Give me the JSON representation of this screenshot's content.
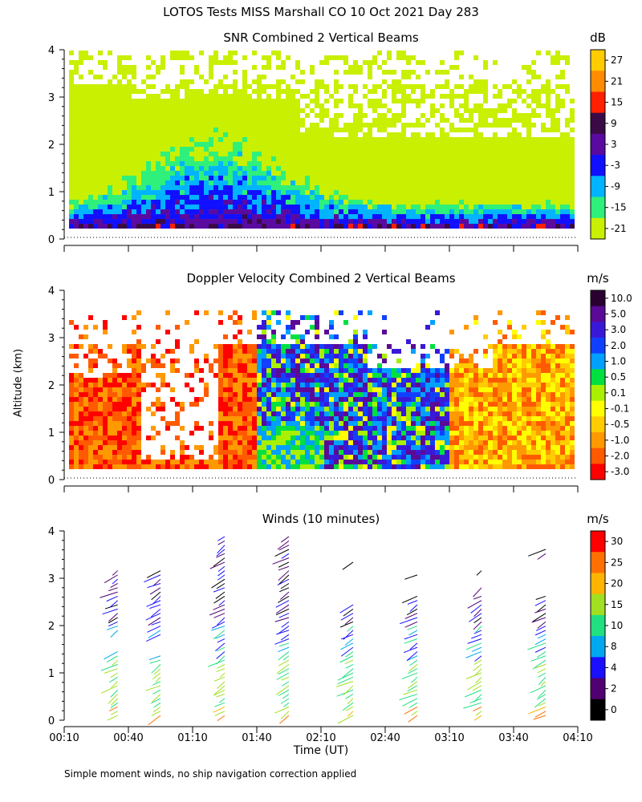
{
  "figure": {
    "title": "LOTOS Tests MISS Marshall CO  10 Oct 2021 Day 283",
    "ylabel": "Altitude (km)",
    "xlabel": "Time (UT)",
    "footnote": "Simple moment winds, no ship navigation correction applied",
    "x_ticks": [
      "00:10",
      "00:40",
      "01:10",
      "01:40",
      "02:10",
      "02:40",
      "03:10",
      "03:40",
      "04:10"
    ],
    "y_ticks": [
      "0",
      "1",
      "2",
      "3",
      "4"
    ]
  },
  "chart_data": [
    {
      "type": "heatmap",
      "title": "SNR Combined 2 Vertical Beams",
      "units": "dB",
      "xlim_minutes": [
        10,
        250
      ],
      "ylim_km": [
        0,
        4
      ],
      "colorbar": {
        "labels": [
          "27",
          "21",
          "15",
          "9",
          "3",
          "-3",
          "-9",
          "-15",
          "-21"
        ],
        "colors": [
          "#ffcc00",
          "#ff8c00",
          "#ff2000",
          "#3a0a46",
          "#5a0aa0",
          "#1010ff",
          "#00b4ff",
          "#2ef07a",
          "#c8f000"
        ]
      }
    },
    {
      "type": "heatmap",
      "title": "Doppler Velocity Combined 2 Vertical Beams",
      "units": "m/s",
      "xlim_minutes": [
        10,
        250
      ],
      "ylim_km": [
        0,
        4
      ],
      "colorbar": {
        "labels": [
          "10.0",
          "5.0",
          "3.0",
          "2.0",
          "1.0",
          "0.5",
          "0.1",
          "-0.1",
          "-0.5",
          "-1.0",
          "-2.0",
          "-3.0"
        ],
        "colors": [
          "#2a0030",
          "#5a0a96",
          "#3a18d8",
          "#1040ff",
          "#00a0ff",
          "#00e040",
          "#a8f000",
          "#ffff00",
          "#ffcc00",
          "#ff9900",
          "#ff5a00",
          "#ff0000"
        ]
      }
    },
    {
      "type": "scatter",
      "title": "Winds (10 minutes)",
      "units": "m/s",
      "xlim_minutes": [
        10,
        250
      ],
      "ylim_km": [
        0,
        4
      ],
      "profile_times_minutes": [
        35,
        55,
        85,
        115,
        145,
        175,
        205,
        235
      ],
      "colorbar": {
        "labels": [
          "30",
          "25",
          "20",
          "15",
          "10",
          "8",
          "4",
          "2",
          "0"
        ],
        "colors": [
          "#ff0000",
          "#ff7000",
          "#ffb400",
          "#a0e020",
          "#20e080",
          "#00a8f0",
          "#1a10ff",
          "#500070",
          "#000000"
        ]
      }
    }
  ]
}
